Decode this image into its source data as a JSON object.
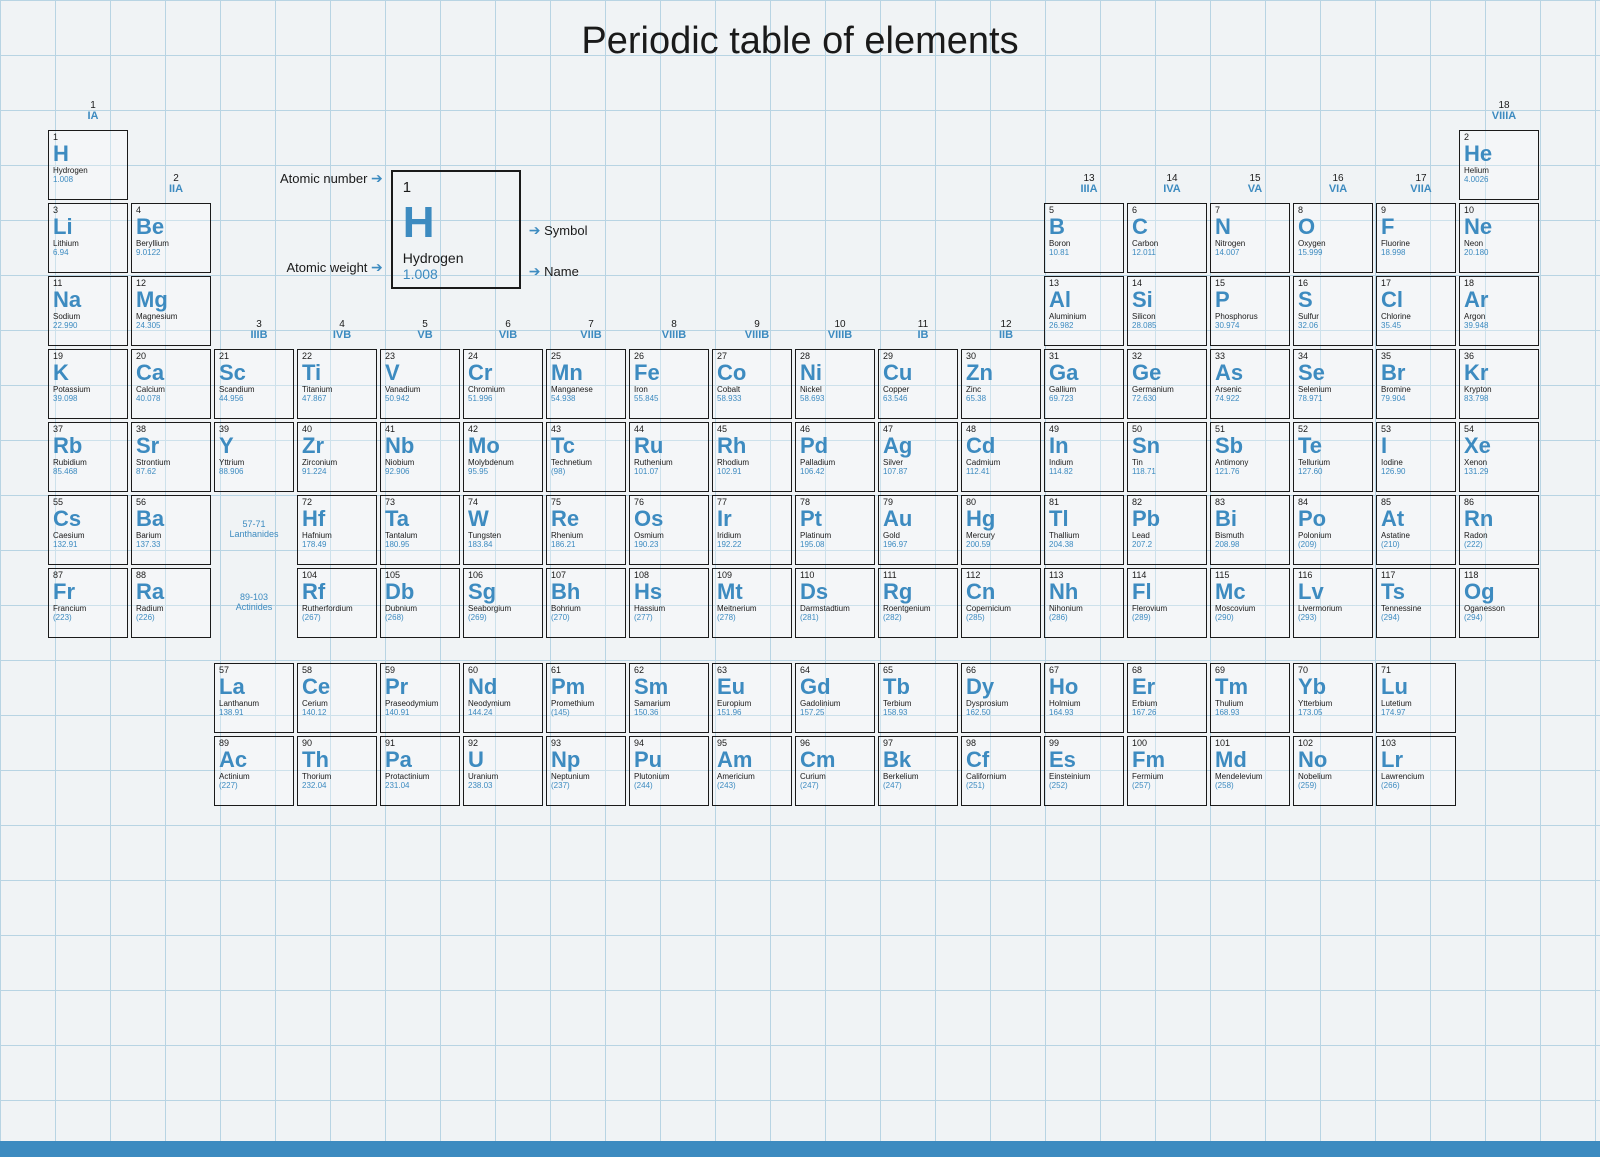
{
  "title": "Periodic table of elements",
  "colors": {
    "accent": "#3d8bc0",
    "text": "#1a1a1a",
    "border": "#1a1a1a",
    "grid": "#b8d4e3",
    "bg": "#f0f3f5"
  },
  "legend": {
    "atomic_number_label": "Atomic number",
    "atomic_weight_label": "Atomic weight",
    "symbol_label": "Symbol",
    "name_label": "Name",
    "example": {
      "num": "1",
      "sym": "H",
      "name": "Hydrogen",
      "wt": "1.008"
    }
  },
  "groups": [
    {
      "n": "1",
      "r": "IA"
    },
    {
      "n": "2",
      "r": "IIA"
    },
    {
      "n": "3",
      "r": "IIIB"
    },
    {
      "n": "4",
      "r": "IVB"
    },
    {
      "n": "5",
      "r": "VB"
    },
    {
      "n": "6",
      "r": "VIB"
    },
    {
      "n": "7",
      "r": "VIIB"
    },
    {
      "n": "8",
      "r": "VIIIB"
    },
    {
      "n": "9",
      "r": "VIIIB"
    },
    {
      "n": "10",
      "r": "VIIIB"
    },
    {
      "n": "11",
      "r": "IB"
    },
    {
      "n": "12",
      "r": "IIB"
    },
    {
      "n": "13",
      "r": "IIIA"
    },
    {
      "n": "14",
      "r": "IVA"
    },
    {
      "n": "15",
      "r": "VA"
    },
    {
      "n": "16",
      "r": "VIA"
    },
    {
      "n": "17",
      "r": "VIIA"
    },
    {
      "n": "18",
      "r": "VIIIA"
    }
  ],
  "series": {
    "lanthanides": "57-71\nLanthanides",
    "actinides": "89-103\nActinides"
  },
  "elements": [
    {
      "p": 1,
      "g": 1,
      "n": 1,
      "s": "H",
      "nm": "Hydrogen",
      "w": "1.008"
    },
    {
      "p": 1,
      "g": 18,
      "n": 2,
      "s": "He",
      "nm": "Helium",
      "w": "4.0026"
    },
    {
      "p": 2,
      "g": 1,
      "n": 3,
      "s": "Li",
      "nm": "Lithium",
      "w": "6.94"
    },
    {
      "p": 2,
      "g": 2,
      "n": 4,
      "s": "Be",
      "nm": "Beryllium",
      "w": "9.0122"
    },
    {
      "p": 2,
      "g": 13,
      "n": 5,
      "s": "B",
      "nm": "Boron",
      "w": "10.81"
    },
    {
      "p": 2,
      "g": 14,
      "n": 6,
      "s": "C",
      "nm": "Carbon",
      "w": "12.011"
    },
    {
      "p": 2,
      "g": 15,
      "n": 7,
      "s": "N",
      "nm": "Nitrogen",
      "w": "14.007"
    },
    {
      "p": 2,
      "g": 16,
      "n": 8,
      "s": "O",
      "nm": "Oxygen",
      "w": "15.999"
    },
    {
      "p": 2,
      "g": 17,
      "n": 9,
      "s": "F",
      "nm": "Fluorine",
      "w": "18.998"
    },
    {
      "p": 2,
      "g": 18,
      "n": 10,
      "s": "Ne",
      "nm": "Neon",
      "w": "20.180"
    },
    {
      "p": 3,
      "g": 1,
      "n": 11,
      "s": "Na",
      "nm": "Sodium",
      "w": "22.990"
    },
    {
      "p": 3,
      "g": 2,
      "n": 12,
      "s": "Mg",
      "nm": "Magnesium",
      "w": "24.305"
    },
    {
      "p": 3,
      "g": 13,
      "n": 13,
      "s": "Al",
      "nm": "Aluminium",
      "w": "26.982"
    },
    {
      "p": 3,
      "g": 14,
      "n": 14,
      "s": "Si",
      "nm": "Silicon",
      "w": "28.085"
    },
    {
      "p": 3,
      "g": 15,
      "n": 15,
      "s": "P",
      "nm": "Phosphorus",
      "w": "30.974"
    },
    {
      "p": 3,
      "g": 16,
      "n": 16,
      "s": "S",
      "nm": "Sulfur",
      "w": "32.06"
    },
    {
      "p": 3,
      "g": 17,
      "n": 17,
      "s": "Cl",
      "nm": "Chlorine",
      "w": "35.45"
    },
    {
      "p": 3,
      "g": 18,
      "n": 18,
      "s": "Ar",
      "nm": "Argon",
      "w": "39.948"
    },
    {
      "p": 4,
      "g": 1,
      "n": 19,
      "s": "K",
      "nm": "Potassium",
      "w": "39.098"
    },
    {
      "p": 4,
      "g": 2,
      "n": 20,
      "s": "Ca",
      "nm": "Calcium",
      "w": "40.078"
    },
    {
      "p": 4,
      "g": 3,
      "n": 21,
      "s": "Sc",
      "nm": "Scandium",
      "w": "44.956"
    },
    {
      "p": 4,
      "g": 4,
      "n": 22,
      "s": "Ti",
      "nm": "Titanium",
      "w": "47.867"
    },
    {
      "p": 4,
      "g": 5,
      "n": 23,
      "s": "V",
      "nm": "Vanadium",
      "w": "50.942"
    },
    {
      "p": 4,
      "g": 6,
      "n": 24,
      "s": "Cr",
      "nm": "Chromium",
      "w": "51.996"
    },
    {
      "p": 4,
      "g": 7,
      "n": 25,
      "s": "Mn",
      "nm": "Manganese",
      "w": "54.938"
    },
    {
      "p": 4,
      "g": 8,
      "n": 26,
      "s": "Fe",
      "nm": "Iron",
      "w": "55.845"
    },
    {
      "p": 4,
      "g": 9,
      "n": 27,
      "s": "Co",
      "nm": "Cobalt",
      "w": "58.933"
    },
    {
      "p": 4,
      "g": 10,
      "n": 28,
      "s": "Ni",
      "nm": "Nickel",
      "w": "58.693"
    },
    {
      "p": 4,
      "g": 11,
      "n": 29,
      "s": "Cu",
      "nm": "Copper",
      "w": "63.546"
    },
    {
      "p": 4,
      "g": 12,
      "n": 30,
      "s": "Zn",
      "nm": "Zinc",
      "w": "65.38"
    },
    {
      "p": 4,
      "g": 13,
      "n": 31,
      "s": "Ga",
      "nm": "Gallium",
      "w": "69.723"
    },
    {
      "p": 4,
      "g": 14,
      "n": 32,
      "s": "Ge",
      "nm": "Germanium",
      "w": "72.630"
    },
    {
      "p": 4,
      "g": 15,
      "n": 33,
      "s": "As",
      "nm": "Arsenic",
      "w": "74.922"
    },
    {
      "p": 4,
      "g": 16,
      "n": 34,
      "s": "Se",
      "nm": "Selenium",
      "w": "78.971"
    },
    {
      "p": 4,
      "g": 17,
      "n": 35,
      "s": "Br",
      "nm": "Bromine",
      "w": "79.904"
    },
    {
      "p": 4,
      "g": 18,
      "n": 36,
      "s": "Kr",
      "nm": "Krypton",
      "w": "83.798"
    },
    {
      "p": 5,
      "g": 1,
      "n": 37,
      "s": "Rb",
      "nm": "Rubidium",
      "w": "85.468"
    },
    {
      "p": 5,
      "g": 2,
      "n": 38,
      "s": "Sr",
      "nm": "Strontium",
      "w": "87.62"
    },
    {
      "p": 5,
      "g": 3,
      "n": 39,
      "s": "Y",
      "nm": "Yttrium",
      "w": "88.906"
    },
    {
      "p": 5,
      "g": 4,
      "n": 40,
      "s": "Zr",
      "nm": "Zirconium",
      "w": "91.224"
    },
    {
      "p": 5,
      "g": 5,
      "n": 41,
      "s": "Nb",
      "nm": "Niobium",
      "w": "92.906"
    },
    {
      "p": 5,
      "g": 6,
      "n": 42,
      "s": "Mo",
      "nm": "Molybdenum",
      "w": "95.95"
    },
    {
      "p": 5,
      "g": 7,
      "n": 43,
      "s": "Tc",
      "nm": "Technetium",
      "w": "(98)"
    },
    {
      "p": 5,
      "g": 8,
      "n": 44,
      "s": "Ru",
      "nm": "Ruthenium",
      "w": "101.07"
    },
    {
      "p": 5,
      "g": 9,
      "n": 45,
      "s": "Rh",
      "nm": "Rhodium",
      "w": "102.91"
    },
    {
      "p": 5,
      "g": 10,
      "n": 46,
      "s": "Pd",
      "nm": "Palladium",
      "w": "106.42"
    },
    {
      "p": 5,
      "g": 11,
      "n": 47,
      "s": "Ag",
      "nm": "Silver",
      "w": "107.87"
    },
    {
      "p": 5,
      "g": 12,
      "n": 48,
      "s": "Cd",
      "nm": "Cadmium",
      "w": "112.41"
    },
    {
      "p": 5,
      "g": 13,
      "n": 49,
      "s": "In",
      "nm": "Indium",
      "w": "114.82"
    },
    {
      "p": 5,
      "g": 14,
      "n": 50,
      "s": "Sn",
      "nm": "Tin",
      "w": "118.71"
    },
    {
      "p": 5,
      "g": 15,
      "n": 51,
      "s": "Sb",
      "nm": "Antimony",
      "w": "121.76"
    },
    {
      "p": 5,
      "g": 16,
      "n": 52,
      "s": "Te",
      "nm": "Tellurium",
      "w": "127.60"
    },
    {
      "p": 5,
      "g": 17,
      "n": 53,
      "s": "I",
      "nm": "Iodine",
      "w": "126.90"
    },
    {
      "p": 5,
      "g": 18,
      "n": 54,
      "s": "Xe",
      "nm": "Xenon",
      "w": "131.29"
    },
    {
      "p": 6,
      "g": 1,
      "n": 55,
      "s": "Cs",
      "nm": "Caesium",
      "w": "132.91"
    },
    {
      "p": 6,
      "g": 2,
      "n": 56,
      "s": "Ba",
      "nm": "Barium",
      "w": "137.33"
    },
    {
      "p": 6,
      "g": 4,
      "n": 72,
      "s": "Hf",
      "nm": "Hafnium",
      "w": "178.49"
    },
    {
      "p": 6,
      "g": 5,
      "n": 73,
      "s": "Ta",
      "nm": "Tantalum",
      "w": "180.95"
    },
    {
      "p": 6,
      "g": 6,
      "n": 74,
      "s": "W",
      "nm": "Tungsten",
      "w": "183.84"
    },
    {
      "p": 6,
      "g": 7,
      "n": 75,
      "s": "Re",
      "nm": "Rhenium",
      "w": "186.21"
    },
    {
      "p": 6,
      "g": 8,
      "n": 76,
      "s": "Os",
      "nm": "Osmium",
      "w": "190.23"
    },
    {
      "p": 6,
      "g": 9,
      "n": 77,
      "s": "Ir",
      "nm": "Iridium",
      "w": "192.22"
    },
    {
      "p": 6,
      "g": 10,
      "n": 78,
      "s": "Pt",
      "nm": "Platinum",
      "w": "195.08"
    },
    {
      "p": 6,
      "g": 11,
      "n": 79,
      "s": "Au",
      "nm": "Gold",
      "w": "196.97"
    },
    {
      "p": 6,
      "g": 12,
      "n": 80,
      "s": "Hg",
      "nm": "Mercury",
      "w": "200.59"
    },
    {
      "p": 6,
      "g": 13,
      "n": 81,
      "s": "Tl",
      "nm": "Thallium",
      "w": "204.38"
    },
    {
      "p": 6,
      "g": 14,
      "n": 82,
      "s": "Pb",
      "nm": "Lead",
      "w": "207.2"
    },
    {
      "p": 6,
      "g": 15,
      "n": 83,
      "s": "Bi",
      "nm": "Bismuth",
      "w": "208.98"
    },
    {
      "p": 6,
      "g": 16,
      "n": 84,
      "s": "Po",
      "nm": "Polonium",
      "w": "(209)"
    },
    {
      "p": 6,
      "g": 17,
      "n": 85,
      "s": "At",
      "nm": "Astatine",
      "w": "(210)"
    },
    {
      "p": 6,
      "g": 18,
      "n": 86,
      "s": "Rn",
      "nm": "Radon",
      "w": "(222)"
    },
    {
      "p": 7,
      "g": 1,
      "n": 87,
      "s": "Fr",
      "nm": "Francium",
      "w": "(223)"
    },
    {
      "p": 7,
      "g": 2,
      "n": 88,
      "s": "Ra",
      "nm": "Radium",
      "w": "(226)"
    },
    {
      "p": 7,
      "g": 4,
      "n": 104,
      "s": "Rf",
      "nm": "Rutherfordium",
      "w": "(267)"
    },
    {
      "p": 7,
      "g": 5,
      "n": 105,
      "s": "Db",
      "nm": "Dubnium",
      "w": "(268)"
    },
    {
      "p": 7,
      "g": 6,
      "n": 106,
      "s": "Sg",
      "nm": "Seaborgium",
      "w": "(269)"
    },
    {
      "p": 7,
      "g": 7,
      "n": 107,
      "s": "Bh",
      "nm": "Bohrium",
      "w": "(270)"
    },
    {
      "p": 7,
      "g": 8,
      "n": 108,
      "s": "Hs",
      "nm": "Hassium",
      "w": "(277)"
    },
    {
      "p": 7,
      "g": 9,
      "n": 109,
      "s": "Mt",
      "nm": "Meitnerium",
      "w": "(278)"
    },
    {
      "p": 7,
      "g": 10,
      "n": 110,
      "s": "Ds",
      "nm": "Darmstadtium",
      "w": "(281)"
    },
    {
      "p": 7,
      "g": 11,
      "n": 111,
      "s": "Rg",
      "nm": "Roentgenium",
      "w": "(282)"
    },
    {
      "p": 7,
      "g": 12,
      "n": 112,
      "s": "Cn",
      "nm": "Copernicium",
      "w": "(285)"
    },
    {
      "p": 7,
      "g": 13,
      "n": 113,
      "s": "Nh",
      "nm": "Nihonium",
      "w": "(286)"
    },
    {
      "p": 7,
      "g": 14,
      "n": 114,
      "s": "Fl",
      "nm": "Flerovium",
      "w": "(289)"
    },
    {
      "p": 7,
      "g": 15,
      "n": 115,
      "s": "Mc",
      "nm": "Moscovium",
      "w": "(290)"
    },
    {
      "p": 7,
      "g": 16,
      "n": 116,
      "s": "Lv",
      "nm": "Livermorium",
      "w": "(293)"
    },
    {
      "p": 7,
      "g": 17,
      "n": 117,
      "s": "Ts",
      "nm": "Tennessine",
      "w": "(294)"
    },
    {
      "p": 7,
      "g": 18,
      "n": 118,
      "s": "Og",
      "nm": "Oganesson",
      "w": "(294)"
    },
    {
      "p": 8,
      "g": 3,
      "n": 57,
      "s": "La",
      "nm": "Lanthanum",
      "w": "138.91"
    },
    {
      "p": 8,
      "g": 4,
      "n": 58,
      "s": "Ce",
      "nm": "Cerium",
      "w": "140.12"
    },
    {
      "p": 8,
      "g": 5,
      "n": 59,
      "s": "Pr",
      "nm": "Praseodymium",
      "w": "140.91"
    },
    {
      "p": 8,
      "g": 6,
      "n": 60,
      "s": "Nd",
      "nm": "Neodymium",
      "w": "144.24"
    },
    {
      "p": 8,
      "g": 7,
      "n": 61,
      "s": "Pm",
      "nm": "Promethium",
      "w": "(145)"
    },
    {
      "p": 8,
      "g": 8,
      "n": 62,
      "s": "Sm",
      "nm": "Samarium",
      "w": "150.36"
    },
    {
      "p": 8,
      "g": 9,
      "n": 63,
      "s": "Eu",
      "nm": "Europium",
      "w": "151.96"
    },
    {
      "p": 8,
      "g": 10,
      "n": 64,
      "s": "Gd",
      "nm": "Gadolinium",
      "w": "157.25"
    },
    {
      "p": 8,
      "g": 11,
      "n": 65,
      "s": "Tb",
      "nm": "Terbium",
      "w": "158.93"
    },
    {
      "p": 8,
      "g": 12,
      "n": 66,
      "s": "Dy",
      "nm": "Dysprosium",
      "w": "162.50"
    },
    {
      "p": 8,
      "g": 13,
      "n": 67,
      "s": "Ho",
      "nm": "Holmium",
      "w": "164.93"
    },
    {
      "p": 8,
      "g": 14,
      "n": 68,
      "s": "Er",
      "nm": "Erbium",
      "w": "167.26"
    },
    {
      "p": 8,
      "g": 15,
      "n": 69,
      "s": "Tm",
      "nm": "Thulium",
      "w": "168.93"
    },
    {
      "p": 8,
      "g": 16,
      "n": 70,
      "s": "Yb",
      "nm": "Ytterbium",
      "w": "173.05"
    },
    {
      "p": 8,
      "g": 17,
      "n": 71,
      "s": "Lu",
      "nm": "Lutetium",
      "w": "174.97"
    },
    {
      "p": 9,
      "g": 3,
      "n": 89,
      "s": "Ac",
      "nm": "Actinium",
      "w": "(227)"
    },
    {
      "p": 9,
      "g": 4,
      "n": 90,
      "s": "Th",
      "nm": "Thorium",
      "w": "232.04"
    },
    {
      "p": 9,
      "g": 5,
      "n": 91,
      "s": "Pa",
      "nm": "Protactinium",
      "w": "231.04"
    },
    {
      "p": 9,
      "g": 6,
      "n": 92,
      "s": "U",
      "nm": "Uranium",
      "w": "238.03"
    },
    {
      "p": 9,
      "g": 7,
      "n": 93,
      "s": "Np",
      "nm": "Neptunium",
      "w": "(237)"
    },
    {
      "p": 9,
      "g": 8,
      "n": 94,
      "s": "Pu",
      "nm": "Plutonium",
      "w": "(244)"
    },
    {
      "p": 9,
      "g": 9,
      "n": 95,
      "s": "Am",
      "nm": "Americium",
      "w": "(243)"
    },
    {
      "p": 9,
      "g": 10,
      "n": 96,
      "s": "Cm",
      "nm": "Curium",
      "w": "(247)"
    },
    {
      "p": 9,
      "g": 11,
      "n": 97,
      "s": "Bk",
      "nm": "Berkelium",
      "w": "(247)"
    },
    {
      "p": 9,
      "g": 12,
      "n": 98,
      "s": "Cf",
      "nm": "Californium",
      "w": "(251)"
    },
    {
      "p": 9,
      "g": 13,
      "n": 99,
      "s": "Es",
      "nm": "Einsteinium",
      "w": "(252)"
    },
    {
      "p": 9,
      "g": 14,
      "n": 100,
      "s": "Fm",
      "nm": "Fermium",
      "w": "(257)"
    },
    {
      "p": 9,
      "g": 15,
      "n": 101,
      "s": "Md",
      "nm": "Mendelevium",
      "w": "(258)"
    },
    {
      "p": 9,
      "g": 16,
      "n": 102,
      "s": "No",
      "nm": "Nobelium",
      "w": "(259)"
    },
    {
      "p": 9,
      "g": 17,
      "n": 103,
      "s": "Lr",
      "nm": "Lawrencium",
      "w": "(266)"
    }
  ]
}
